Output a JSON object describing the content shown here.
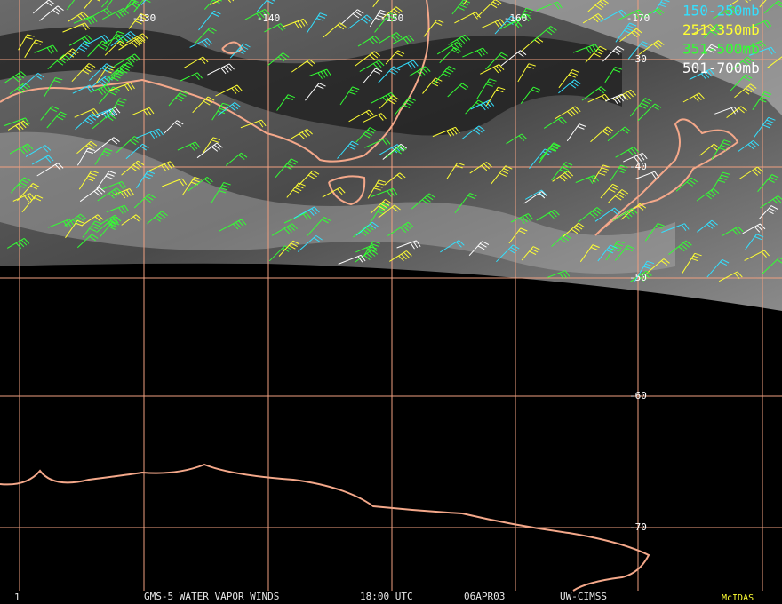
{
  "longitude_labels": [
    "-130",
    "-140",
    "-150",
    "-160",
    "-170"
  ],
  "latitude_labels": [
    "-30",
    "-40",
    "-50",
    "-60",
    "-70"
  ],
  "legend": [
    {
      "label": "150-250mb",
      "color": "#33e0ff"
    },
    {
      "label": "251-350mb",
      "color": "#ffff33"
    },
    {
      "label": "351-500mb",
      "color": "#33ff33"
    },
    {
      "label": "501-700mb",
      "color": "#ffffff"
    }
  ],
  "footer": {
    "frame": "1",
    "title": "GMS-5 WATER VAPOR WINDS",
    "time": "18:00 UTC",
    "date": "06APR03",
    "source": "UW-CIMSS",
    "software": "McIDAS"
  }
}
